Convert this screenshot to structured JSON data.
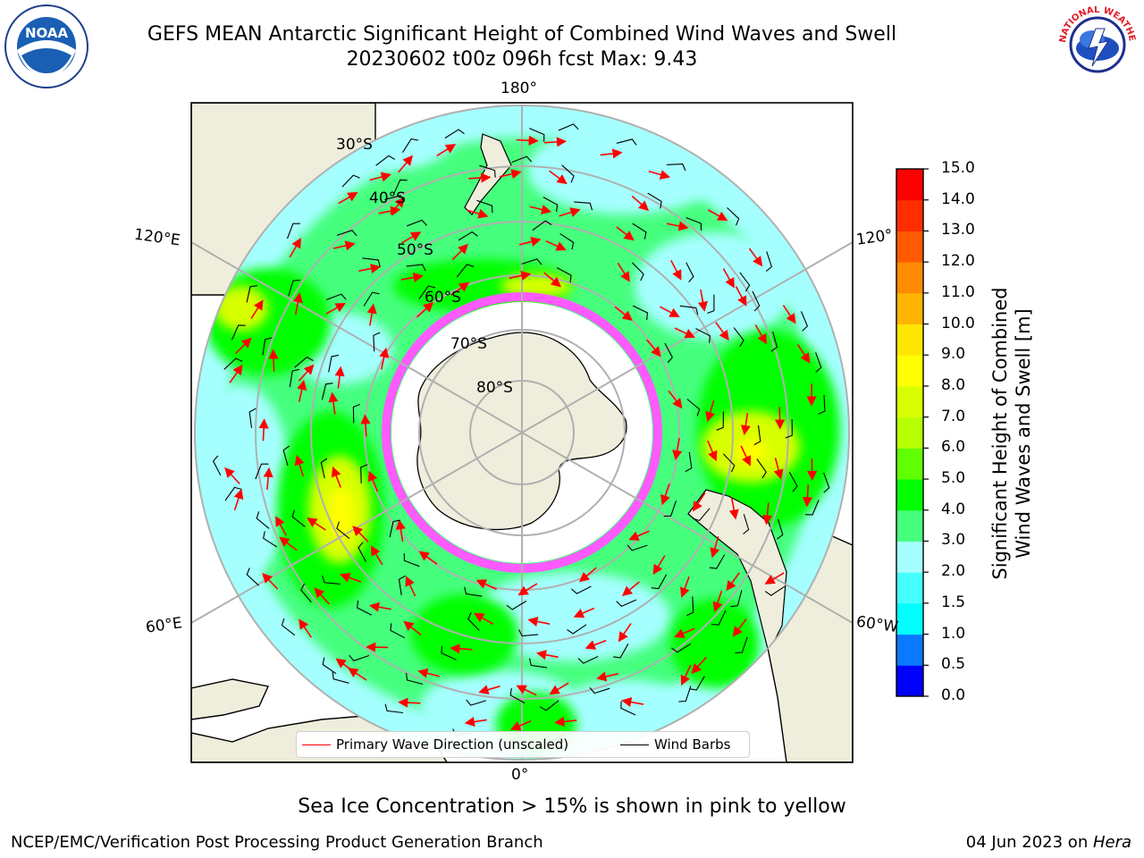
{
  "title": {
    "line1": "GEFS MEAN Antarctic Significant Height of Combined Wind Waves and Swell",
    "line2": "20230602 t00z 096h fcst   Max: 9.43"
  },
  "logos": {
    "left": "NOAA",
    "right": "NATIONAL WEATHER SERVICE"
  },
  "map": {
    "projection": "south polar stereographic",
    "longitude_labels": {
      "top": "180°",
      "bottom": "0°",
      "left_upper": "120°E",
      "left_lower": "60°E",
      "right_upper": "120°",
      "right_lower": "60°W"
    },
    "latitude_labels": [
      "30°S",
      "40°S",
      "50°S",
      "60°S",
      "70°S",
      "80°S"
    ],
    "colors": {
      "land": "#efeedd",
      "ice": "#ff00ff",
      "wave_arrow": "#ff0000",
      "wind_barb": "#000000",
      "grid": "#b0b0b0"
    }
  },
  "legend": {
    "wave_direction": "Primary Wave Direction (unscaled)",
    "wind_barbs": "Wind Barbs"
  },
  "colorbar": {
    "label_line1": "Significant Height of Combined",
    "label_line2": "Wind Waves and Swell [m]",
    "ticks": [
      "0.0",
      "0.5",
      "1.0",
      "1.5",
      "2.0",
      "3.0",
      "4.0",
      "5.0",
      "6.0",
      "7.0",
      "8.0",
      "9.0",
      "10.0",
      "11.0",
      "12.0",
      "13.0",
      "14.0",
      "15.0"
    ],
    "colors": [
      "#0000ff",
      "#0a78ff",
      "#00ffff",
      "#45ffff",
      "#a5ffff",
      "#45ff7d",
      "#00ff00",
      "#5fff00",
      "#b5ff00",
      "#d7ff00",
      "#ffff00",
      "#ffe600",
      "#ffb400",
      "#ff8c00",
      "#ff5a00",
      "#ff2d00",
      "#ff0000"
    ]
  },
  "footnote": "Sea Ice Concentration > 15% is shown in pink to yellow",
  "credit": "NCEP/EMC/Verification Post Processing Product Generation Branch",
  "date_prefix": "04 Jun 2023 on ",
  "date_machine": "Hera"
}
